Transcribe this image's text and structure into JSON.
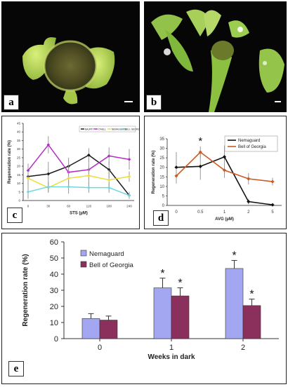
{
  "panels": {
    "a": {
      "label": "a"
    },
    "b": {
      "label": "b"
    }
  },
  "chart_data": [
    {
      "id": "c",
      "panel_label": "c",
      "type": "line",
      "xlabel": "STS (µM)",
      "ylabel": "Regeneration rate (%)",
      "ylim": [
        0,
        45
      ],
      "yticks": [
        0,
        5,
        10,
        15,
        20,
        25,
        30,
        35,
        40,
        45
      ],
      "categories": [
        "0",
        "30",
        "60",
        "120",
        "180",
        "240"
      ],
      "legend_position": "top-right",
      "series": [
        {
          "name": "BAURTY",
          "color": "#1a1a1a",
          "values": [
            14,
            15.5,
            20,
            26.5,
            18,
            3
          ]
        },
        {
          "name": "O'HELL",
          "color": "#b32cc4",
          "values": [
            17.5,
            32.5,
            16.5,
            18,
            26,
            24
          ]
        },
        {
          "name": "NEMAGUARD",
          "color": "#e9dd3c",
          "values": [
            13,
            7.5,
            13,
            14.5,
            12,
            14
          ]
        },
        {
          "name": "BELL GEORGIA",
          "color": "#6fd7de",
          "values": [
            5,
            8,
            8,
            7.5,
            7.5,
            3
          ]
        }
      ],
      "error": [
        [
          5,
          7,
          5,
          4,
          5,
          2
        ],
        [
          4,
          5,
          7,
          6,
          5,
          6
        ],
        [
          4,
          3,
          5,
          6,
          6,
          3
        ],
        [
          4,
          3,
          4,
          3,
          3,
          2
        ]
      ]
    },
    {
      "id": "d",
      "panel_label": "d",
      "type": "line",
      "xlabel": "AVG (µM)",
      "ylabel": "Regeneration rate (%)",
      "ylim": [
        0,
        35
      ],
      "yticks": [
        0,
        5,
        10,
        15,
        20,
        25,
        30,
        35
      ],
      "categories": [
        "0",
        "0.5",
        "1",
        "2",
        "5"
      ],
      "legend_position": "top-right",
      "annotation": "*",
      "series": [
        {
          "name": "Nemaguard",
          "color": "#111111",
          "values": [
            20,
            20.5,
            25.5,
            2,
            0.3
          ]
        },
        {
          "name": "Bell of Georgia",
          "color": "#cc5a22",
          "values": [
            15.5,
            28,
            18.5,
            14,
            12.5
          ]
        }
      ],
      "error": [
        [
          8,
          7,
          6,
          1.5,
          0.3
        ],
        [
          4,
          3,
          4,
          3,
          2
        ]
      ]
    },
    {
      "id": "e",
      "panel_label": "e",
      "type": "bar",
      "xlabel": "Weeks in dark",
      "ylabel": "Regeneration rate (%)",
      "ylim": [
        0,
        60
      ],
      "yticks": [
        0,
        10,
        20,
        30,
        40,
        50,
        60
      ],
      "categories": [
        "0",
        "1",
        "2"
      ],
      "legend_position": "top-left",
      "annotation": "*",
      "series": [
        {
          "name": "Nemaguard",
          "color": "#a3a7f2",
          "values": [
            12.5,
            31.5,
            43.5
          ]
        },
        {
          "name": "Bell of Georgia",
          "color": "#8b2f5c",
          "values": [
            11.5,
            26.5,
            20.5
          ]
        }
      ],
      "error": [
        [
          3,
          6,
          5
        ],
        [
          2.5,
          5,
          4
        ]
      ],
      "stars": [
        [
          false,
          true,
          true
        ],
        [
          false,
          true,
          true
        ]
      ]
    }
  ]
}
